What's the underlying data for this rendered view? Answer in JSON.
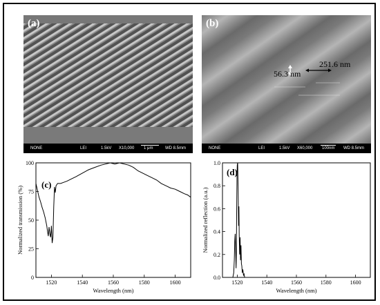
{
  "panel_a": {
    "letter": "(a)",
    "info": {
      "detector": "NONE",
      "mode": "LEI",
      "voltage": "1.5kV",
      "magnification": "X10,000",
      "scale": "1 μm",
      "wd": "WD 8.5mm"
    }
  },
  "panel_b": {
    "letter": "(b)",
    "info": {
      "detector": "NONE",
      "mode": "LEI",
      "voltage": "1.5kV",
      "magnification": "X60,000",
      "scale": "100nm",
      "wd": "WD 8.5mm"
    },
    "annotations": {
      "width": "56.3 nm",
      "period": "251.6 nm"
    }
  },
  "chart_data": [
    {
      "panel": "(c)",
      "type": "line",
      "xlabel": "Wavelength (nm)",
      "ylabel": "Normalized transmission (%)",
      "xlim": [
        1510,
        1610
      ],
      "ylim": [
        0,
        100
      ],
      "xticks": [
        1520,
        1540,
        1560,
        1580,
        1600
      ],
      "yticks": [
        0,
        25,
        50,
        75,
        100
      ],
      "series": [
        {
          "x": [
            1510,
            1511,
            1512,
            1513,
            1514,
            1515,
            1516,
            1517,
            1517.5,
            1518,
            1518.5,
            1519,
            1519.5,
            1520,
            1520.5,
            1521,
            1521.5,
            1522,
            1522.5,
            1523,
            1524,
            1526,
            1528,
            1530,
            1533,
            1536,
            1540,
            1544,
            1548,
            1552,
            1555,
            1558,
            1561,
            1564,
            1567,
            1570,
            1573,
            1576,
            1579,
            1582,
            1585,
            1588,
            1591,
            1594,
            1597,
            1600,
            1603,
            1606,
            1608,
            1610
          ],
          "y": [
            82,
            76,
            70,
            66,
            61,
            57,
            52,
            45,
            40,
            36,
            44,
            38,
            35,
            45,
            30,
            35,
            62,
            79,
            74,
            80,
            82,
            82,
            83,
            84,
            86,
            88,
            91,
            94,
            96,
            98,
            99,
            100,
            99,
            100,
            99,
            98,
            96,
            93,
            91,
            89,
            87,
            85,
            82,
            80,
            78,
            77,
            75,
            73,
            72,
            70
          ]
        }
      ]
    },
    {
      "panel": "(d)",
      "type": "line",
      "xlabel": "Wavelength (nm)",
      "ylabel": "Normalized reflection (a.u.)",
      "xlim": [
        1510,
        1610
      ],
      "ylim": [
        0,
        1.0
      ],
      "xticks": [
        1520,
        1540,
        1560,
        1580,
        1600
      ],
      "yticks": [
        0.0,
        0.2,
        0.4,
        0.6,
        0.8,
        1.0
      ],
      "series": [
        {
          "x": [
            1510,
            1517,
            1517.6,
            1518,
            1518.3,
            1518.6,
            1518.9,
            1519.2,
            1519.4,
            1519.6,
            1519.8,
            1520,
            1520.3,
            1520.6,
            1520.9,
            1521.1,
            1521.3,
            1521.6,
            1521.9,
            1522.2,
            1522.5,
            1522.8,
            1523.1,
            1523.4,
            1523.8,
            1524.2,
            1524.6,
            1525,
            1526,
            1610
          ],
          "y": [
            0,
            0,
            0.04,
            0.15,
            0.32,
            0.38,
            0.25,
            0.08,
            0.2,
            0.55,
            0.88,
            0.98,
            1.0,
            0.75,
            0.45,
            0.62,
            0.38,
            0.2,
            0.35,
            0.15,
            0.28,
            0.12,
            0.1,
            0.04,
            0.07,
            0.02,
            0.03,
            0.0,
            0,
            0
          ]
        }
      ]
    }
  ]
}
